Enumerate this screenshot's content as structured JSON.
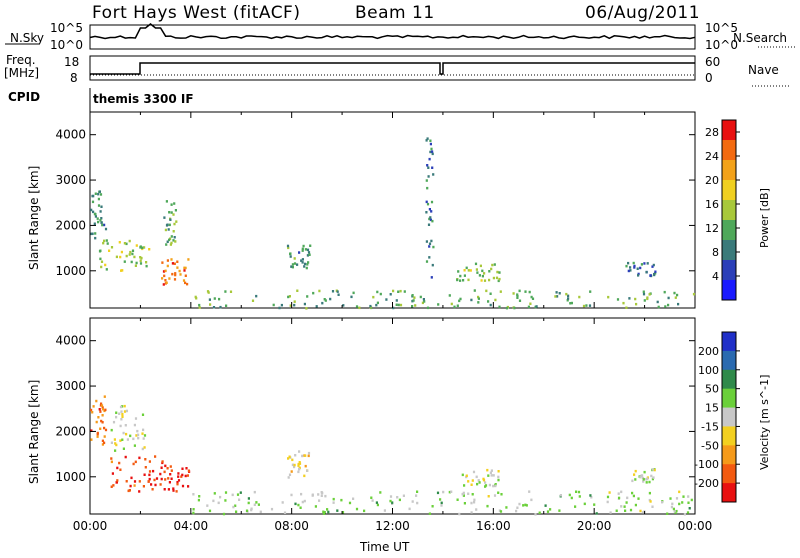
{
  "header": {
    "station": "Fort Hays West (fitACF)",
    "beam": "Beam 11",
    "date": "06/Aug/2011"
  },
  "meta_panel": {
    "nsky_label": "N.Sky",
    "nsky_ticks": [
      "10^5",
      "10^0"
    ],
    "nsearch_label": "N.Search",
    "nsearch_ticks": [
      "10^5",
      "10^0"
    ],
    "freq_label": "Freq.",
    "freq_unit": "[MHz]",
    "freq_ticks": [
      "18",
      "8"
    ],
    "nave_label": "Nave",
    "nave_ticks": [
      "60",
      "0"
    ],
    "cpid_label": "CPID",
    "cpid_value": "themis 3300 IF"
  },
  "colors": {
    "power_scale": [
      "#1a1aff",
      "#2b3fb8",
      "#3a7a7a",
      "#4fa85a",
      "#a8c83a",
      "#f0d020",
      "#f3a21a",
      "#f36a10",
      "#e81010"
    ],
    "velocity_scale": [
      "#2030c8",
      "#2a6ab0",
      "#2f8a4a",
      "#6bd03a",
      "#c8c8c8",
      "#f3d020",
      "#f59a1a",
      "#f35a10",
      "#e81010"
    ]
  },
  "chart_data": [
    {
      "type": "heatmap",
      "title": "Power",
      "ylabel": "Slant Range [km]",
      "xlabel": "",
      "ylim": [
        180,
        4500
      ],
      "xlim": [
        0,
        24
      ],
      "y_ticks": [
        "1000",
        "2000",
        "3000",
        "4000"
      ],
      "x_ticks": [],
      "colorbar": {
        "label": "Power [dB]",
        "ticks": [
          "4",
          "8",
          "12",
          "16",
          "20",
          "24",
          "28"
        ],
        "range": [
          0,
          30
        ]
      },
      "x_unit": "hours UT",
      "y_unit": "km",
      "value_unit": "dB",
      "regions": [
        {
          "x": [
            0.0,
            0.6
          ],
          "y": [
            1700,
            2800
          ],
          "value": 10
        },
        {
          "x": [
            0.3,
            2.4
          ],
          "y": [
            1000,
            1700
          ],
          "value": 14
        },
        {
          "x": [
            2.8,
            3.9
          ],
          "y": [
            700,
            1300
          ],
          "value": 24
        },
        {
          "x": [
            2.9,
            3.4
          ],
          "y": [
            1600,
            2600
          ],
          "value": 12
        },
        {
          "x": [
            7.8,
            8.7
          ],
          "y": [
            1000,
            1600
          ],
          "value": 10
        },
        {
          "x": [
            13.3,
            13.6
          ],
          "y": [
            800,
            4000
          ],
          "value": 8
        },
        {
          "x": [
            14.5,
            16.4
          ],
          "y": [
            800,
            1200
          ],
          "value": 14
        },
        {
          "x": [
            4.0,
            24.0
          ],
          "y": [
            200,
            600
          ],
          "value": 12
        },
        {
          "x": [
            21.2,
            22.4
          ],
          "y": [
            900,
            1200
          ],
          "value": 8
        }
      ]
    },
    {
      "type": "heatmap",
      "title": "Velocity",
      "ylabel": "Slant Range [km]",
      "xlabel": "Time UT",
      "ylim": [
        180,
        4500
      ],
      "xlim": [
        0,
        24
      ],
      "y_ticks": [
        "1000",
        "2000",
        "3000",
        "4000"
      ],
      "x_ticks": [
        "00:00",
        "04:00",
        "08:00",
        "12:00",
        "16:00",
        "20:00",
        "00:00"
      ],
      "colorbar": {
        "label": "Velocity [m s^-1]",
        "ticks": [
          "200",
          "100",
          "50",
          "15",
          "-15",
          "-50",
          "-100",
          "-200"
        ],
        "range": [
          -250,
          250
        ]
      },
      "x_unit": "hours UT",
      "y_unit": "km",
      "value_unit": "m/s",
      "regions": [
        {
          "x": [
            0.0,
            0.6
          ],
          "y": [
            1700,
            2800
          ],
          "value": -150
        },
        {
          "x": [
            0.8,
            2.2
          ],
          "y": [
            1600,
            2600
          ],
          "value": 0
        },
        {
          "x": [
            0.8,
            2.9
          ],
          "y": [
            700,
            1500
          ],
          "value": -200
        },
        {
          "x": [
            2.9,
            3.9
          ],
          "y": [
            700,
            1300
          ],
          "value": -200
        },
        {
          "x": [
            7.8,
            8.7
          ],
          "y": [
            1000,
            1600
          ],
          "value": -50
        },
        {
          "x": [
            4.0,
            24.0
          ],
          "y": [
            200,
            700
          ],
          "value": 30
        },
        {
          "x": [
            14.6,
            16.2
          ],
          "y": [
            800,
            1200
          ],
          "value": 0
        },
        {
          "x": [
            21.4,
            22.4
          ],
          "y": [
            900,
            1200
          ],
          "value": 0
        }
      ]
    }
  ]
}
